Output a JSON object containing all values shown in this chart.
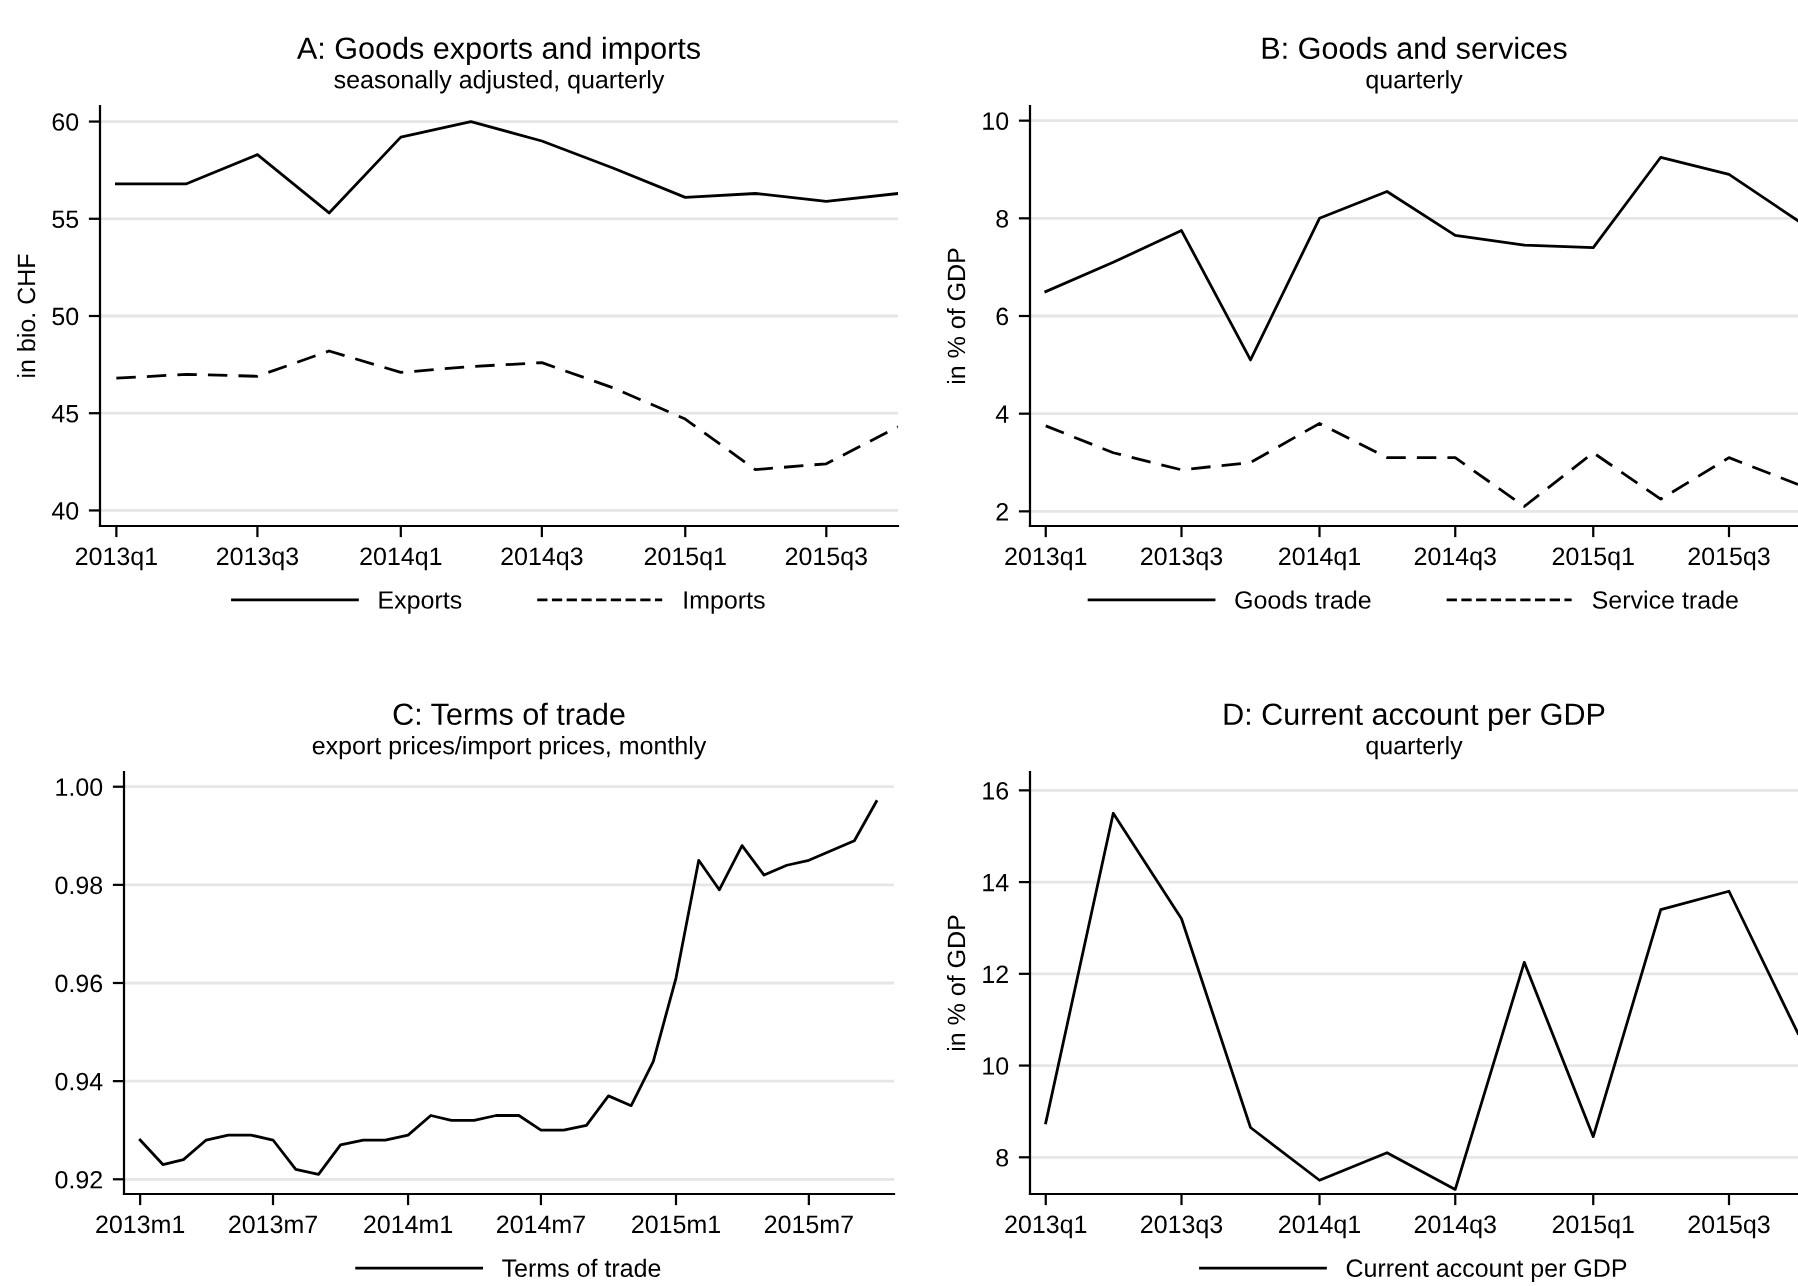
{
  "chart_data": [
    {
      "type": "line",
      "title": "A: Goods exports and imports",
      "subtitle": "seasonally adjusted, quarterly",
      "ylabel": "in bio. CHF",
      "x": [
        "2013-01",
        "2013-04",
        "2013-07",
        "2013-10",
        "2014-01",
        "2014-04",
        "2014-07",
        "2014-10",
        "2015-01",
        "2015-04",
        "2015-07",
        "2015-10"
      ],
      "xlim": [
        "2012-12-11",
        "2015-10-01"
      ],
      "xticks": [
        {
          "value": "2013-01",
          "label": "2013q1"
        },
        {
          "value": "2013-07",
          "label": "2013q3"
        },
        {
          "value": "2014-01",
          "label": "2014q1"
        },
        {
          "value": "2014-07",
          "label": "2014q3"
        },
        {
          "value": "2015-01",
          "label": "2015q1"
        },
        {
          "value": "2015-07",
          "label": "2015q3"
        }
      ],
      "ylim": [
        39.2,
        60.8
      ],
      "yticks": [
        40,
        45,
        50,
        55,
        60
      ],
      "grid": "y",
      "legend": "bottom",
      "series": [
        {
          "name": "Exports",
          "color": "#000000",
          "line_style": "solid",
          "values": [
            56.8,
            56.8,
            58.3,
            55.3,
            59.2,
            60.0,
            59.0,
            57.6,
            56.1,
            56.3,
            55.9,
            56.3
          ]
        },
        {
          "name": "Imports",
          "color": "#000000",
          "line_style": "dashed",
          "values": [
            46.8,
            47.0,
            46.9,
            48.2,
            47.1,
            47.4,
            47.6,
            46.3,
            44.7,
            42.1,
            42.4,
            44.3
          ]
        }
      ]
    },
    {
      "type": "line",
      "title": "B: Goods and services",
      "subtitle": "quarterly",
      "ylabel": "in % of GDP",
      "x": [
        "2013-01",
        "2013-04",
        "2013-07",
        "2013-10",
        "2014-01",
        "2014-04",
        "2014-07",
        "2014-10",
        "2015-01",
        "2015-04",
        "2015-07",
        "2015-10"
      ],
      "xlim": [
        "2012-12-11",
        "2015-10-01"
      ],
      "xticks": [
        {
          "value": "2013-01",
          "label": "2013q1"
        },
        {
          "value": "2013-07",
          "label": "2013q3"
        },
        {
          "value": "2014-01",
          "label": "2014q1"
        },
        {
          "value": "2014-07",
          "label": "2014q3"
        },
        {
          "value": "2015-01",
          "label": "2015q1"
        },
        {
          "value": "2015-07",
          "label": "2015q3"
        }
      ],
      "ylim": [
        1.7,
        10.3
      ],
      "yticks": [
        2,
        4,
        6,
        8,
        10
      ],
      "grid": "y",
      "legend": "bottom",
      "series": [
        {
          "name": "Goods trade",
          "color": "#000000",
          "line_style": "solid",
          "values": [
            6.5,
            7.1,
            7.75,
            5.1,
            8.0,
            8.55,
            7.65,
            7.45,
            7.4,
            9.25,
            8.9,
            7.95
          ]
        },
        {
          "name": "Service trade",
          "color": "#000000",
          "line_style": "dashed",
          "values": [
            3.75,
            3.2,
            2.85,
            3.0,
            3.8,
            3.1,
            3.1,
            2.1,
            3.2,
            2.25,
            3.1,
            2.55
          ]
        }
      ]
    },
    {
      "type": "line",
      "title": "C: Terms of trade",
      "subtitle": "export prices/import prices, monthly",
      "x": [
        "2013-01",
        "2013-02",
        "2013-03",
        "2013-04",
        "2013-05",
        "2013-06",
        "2013-07",
        "2013-08",
        "2013-09",
        "2013-10",
        "2013-11",
        "2013-12",
        "2014-01",
        "2014-02",
        "2014-03",
        "2014-04",
        "2014-05",
        "2014-06",
        "2014-07",
        "2014-08",
        "2014-09",
        "2014-10",
        "2014-11",
        "2014-12",
        "2015-01",
        "2015-02",
        "2015-03",
        "2015-04",
        "2015-05",
        "2015-06",
        "2015-07",
        "2015-08",
        "2015-09",
        "2015-10"
      ],
      "xlim": [
        "2012-12-10",
        "2015-10-25"
      ],
      "xticks": [
        {
          "value": "2013-01",
          "label": "2013m1"
        },
        {
          "value": "2013-07",
          "label": "2013m7"
        },
        {
          "value": "2014-01",
          "label": "2014m1"
        },
        {
          "value": "2014-07",
          "label": "2014m7"
        },
        {
          "value": "2015-01",
          "label": "2015m1"
        },
        {
          "value": "2015-07",
          "label": "2015m7"
        }
      ],
      "ylim": [
        0.917,
        1.003
      ],
      "yticks": [
        {
          "value": 0.92,
          "label": "0.92"
        },
        {
          "value": 0.94,
          "label": "0.94"
        },
        {
          "value": 0.96,
          "label": "0.96"
        },
        {
          "value": 0.98,
          "label": "0.98"
        },
        {
          "value": 1.0,
          "label": "1.00"
        }
      ],
      "grid": "y",
      "legend": "bottom",
      "series": [
        {
          "name": "Terms of trade",
          "color": "#000000",
          "line_style": "solid",
          "values": [
            0.928,
            0.923,
            0.924,
            0.928,
            0.929,
            0.929,
            0.928,
            0.922,
            0.921,
            0.927,
            0.928,
            0.928,
            0.929,
            0.933,
            0.932,
            0.932,
            0.933,
            0.933,
            0.93,
            0.93,
            0.931,
            0.937,
            0.935,
            0.944,
            0.961,
            0.985,
            0.979,
            0.988,
            0.982,
            0.984,
            0.985,
            0.987,
            0.989,
            0.997
          ]
        }
      ]
    },
    {
      "type": "line",
      "title": "D: Current account per GDP",
      "subtitle": "quarterly",
      "ylabel": "in % of GDP",
      "x": [
        "2013-01",
        "2013-04",
        "2013-07",
        "2013-10",
        "2014-01",
        "2014-04",
        "2014-07",
        "2014-10",
        "2015-01",
        "2015-04",
        "2015-07",
        "2015-10"
      ],
      "xlim": [
        "2012-12-11",
        "2015-10-01"
      ],
      "xticks": [
        {
          "value": "2013-01",
          "label": "2013q1"
        },
        {
          "value": "2013-07",
          "label": "2013q3"
        },
        {
          "value": "2014-01",
          "label": "2014q1"
        },
        {
          "value": "2014-07",
          "label": "2014q3"
        },
        {
          "value": "2015-01",
          "label": "2015q1"
        },
        {
          "value": "2015-07",
          "label": "2015q3"
        }
      ],
      "ylim": [
        7.2,
        16.4
      ],
      "yticks": [
        8,
        10,
        12,
        14,
        16
      ],
      "grid": "y",
      "legend": "bottom",
      "series": [
        {
          "name": "Current account per GDP",
          "color": "#000000",
          "line_style": "solid",
          "values": [
            8.75,
            15.5,
            13.2,
            8.65,
            7.5,
            8.1,
            7.3,
            12.25,
            8.45,
            13.4,
            13.8,
            10.7
          ]
        }
      ]
    }
  ]
}
